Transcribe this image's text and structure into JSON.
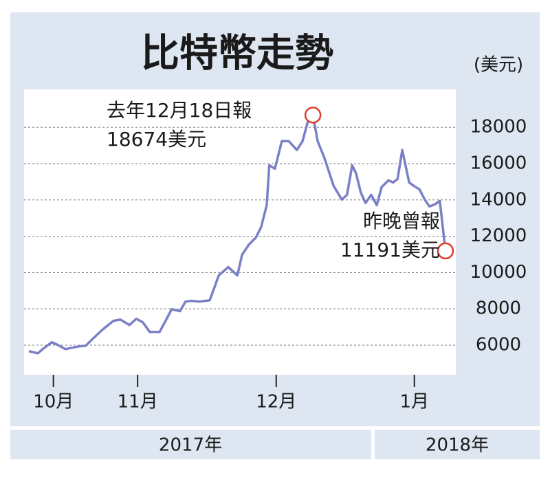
{
  "chart_data": {
    "type": "line",
    "title": "比特幣走勢",
    "unit_label": "(美元)",
    "x": [
      1.1,
      3.2,
      4.3,
      6.4,
      7.5,
      9.6,
      11.1,
      12.7,
      14.3,
      15.9,
      18.3,
      20.7,
      22.3,
      24.4,
      26.0,
      27.5,
      29.1,
      31.4,
      32.6,
      34.2,
      36.1,
      37.4,
      38.7,
      40.6,
      43.0,
      45.1,
      47.3,
      49.4,
      50.5,
      52.1,
      53.7,
      54.9,
      56.2,
      56.8,
      58.1,
      59.7,
      61.3,
      63.2,
      64.5,
      65.8,
      66.9,
      68.0,
      69.6,
      71.7,
      73.6,
      74.8,
      76.0,
      76.9,
      78.0,
      79.1,
      80.4,
      81.7,
      82.8,
      84.4,
      85.5,
      86.5,
      87.6,
      89.2,
      90.3,
      91.6,
      92.8,
      93.9,
      95.1,
      96.3,
      97.6
    ],
    "series": [
      {
        "color": "#7b80c6",
        "values": [
          5670,
          5550,
          5780,
          6160,
          6050,
          5780,
          5860,
          5930,
          5970,
          6350,
          6880,
          7340,
          7410,
          7110,
          7450,
          7260,
          6730,
          6730,
          7260,
          7980,
          7870,
          8400,
          8440,
          8400,
          8470,
          9840,
          10300,
          9840,
          10980,
          11550,
          11930,
          12500,
          13710,
          15910,
          15720,
          17240,
          17240,
          16750,
          17240,
          18380,
          18674,
          17240,
          16290,
          14770,
          14020,
          14280,
          15910,
          15460,
          14400,
          13830,
          14280,
          13710,
          14700,
          15080,
          14960,
          15150,
          16750,
          14960,
          14770,
          14580,
          14020,
          13640,
          13750,
          13940,
          11191
        ]
      }
    ],
    "xlim": [
      0,
      100
    ],
    "xticks": [
      {
        "value": 6.8,
        "label": "10月"
      },
      {
        "value": 26.3,
        "label": "11月"
      },
      {
        "value": 58.4,
        "label": "12月"
      },
      {
        "value": 90.4,
        "label": "1月"
      }
    ],
    "ylim": [
      4370,
      20090
    ],
    "yticks": [
      6000,
      8000,
      10000,
      12000,
      14000,
      16000,
      18000
    ],
    "grid": true,
    "annotations": [
      {
        "lines": [
          "去年12月18日報",
          "18674美元"
        ],
        "marker_color": "#e03a2a"
      },
      {
        "lines": [
          "昨晚曾報",
          "11191美元"
        ],
        "marker_color": "#e03a2a"
      }
    ],
    "year_labels": [
      "2017年",
      "2018年"
    ]
  }
}
